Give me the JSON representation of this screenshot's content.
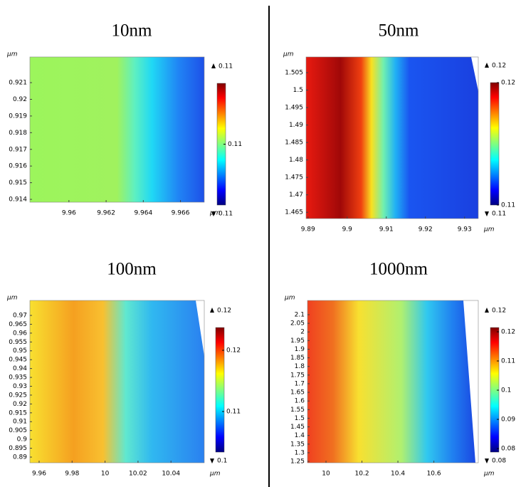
{
  "chart_data": [
    {
      "type": "heatmap",
      "title": "10nm",
      "x_label": "µm",
      "y_label": "µm",
      "xlim": [
        9.9579,
        9.96728
      ],
      "xticks": [
        9.96,
        9.962,
        9.964,
        9.966
      ],
      "ylim": [
        0.91383,
        0.92254
      ],
      "yticks": [
        0.921,
        0.92,
        0.919,
        0.918,
        0.917,
        0.916,
        0.915,
        0.914
      ],
      "clim": [
        0.1099,
        0.1101
      ],
      "cticks": [
        0.11
      ],
      "max": 0.11,
      "min": 0.11
    },
    {
      "type": "heatmap",
      "title": "50nm",
      "x_label": "µm",
      "y_label": "µm",
      "xlim": [
        9.8895,
        9.9335
      ],
      "xticks": [
        9.89,
        9.9,
        9.91,
        9.92,
        9.93
      ],
      "ylim": [
        1.4632,
        1.5095
      ],
      "yticks": [
        1.505,
        1.5,
        1.495,
        1.49,
        1.485,
        1.48,
        1.475,
        1.47,
        1.465
      ],
      "clim": [
        0.11,
        0.12
      ],
      "cticks": [
        0.12,
        0.11
      ],
      "max": 0.12,
      "min": 0.11
    },
    {
      "type": "heatmap",
      "title": "100nm",
      "x_label": "µm",
      "y_label": "µm",
      "xlim": [
        9.9544,
        10.0602
      ],
      "xticks": [
        9.96,
        9.98,
        10,
        10.02,
        10.04
      ],
      "ylim": [
        0.88678,
        0.97844
      ],
      "yticks": [
        0.97,
        0.965,
        0.96,
        0.955,
        0.95,
        0.945,
        0.94,
        0.935,
        0.93,
        0.925,
        0.92,
        0.915,
        0.91,
        0.905,
        0.9,
        0.895,
        0.89
      ],
      "clim": [
        0.10337,
        0.12372
      ],
      "cticks": [
        0.12,
        0.11
      ],
      "max": 0.12,
      "min": 0.1
    },
    {
      "type": "heatmap",
      "title": "1000nm",
      "x_label": "µm",
      "y_label": "µm",
      "xlim": [
        9.897,
        10.847
      ],
      "xticks": [
        10,
        10.2,
        10.4,
        10.6
      ],
      "ylim": [
        1.2418,
        2.1825
      ],
      "yticks": [
        2.1,
        2.05,
        2,
        1.95,
        1.9,
        1.85,
        1.8,
        1.75,
        1.7,
        1.65,
        1.6,
        1.55,
        1.5,
        1.45,
        1.4,
        1.35,
        1.3,
        1.25
      ],
      "clim": [
        0.07878,
        0.12146
      ],
      "cticks": [
        0.12,
        0.11,
        0.1,
        0.09,
        0.08
      ],
      "max": 0.12,
      "min": 0.08
    }
  ]
}
